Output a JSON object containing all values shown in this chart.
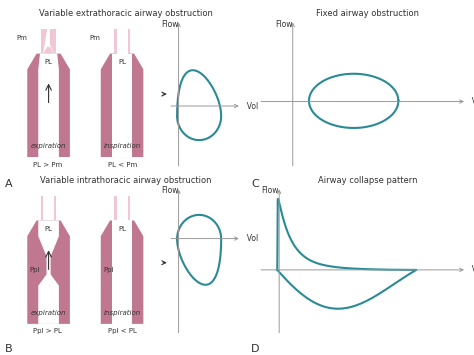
{
  "bg_color": "#ffffff",
  "curve_color": "#2a8a96",
  "curve_lw": 1.5,
  "axis_color": "#999999",
  "pink_dark": "#c07890",
  "pink_mid": "#d090a0",
  "pink_light": "#f0c8d4",
  "text_color": "#333333",
  "label_A": "A",
  "label_B": "B",
  "label_C": "C",
  "label_D": "D",
  "title_A": "Variable extrathoracic airway obstruction",
  "title_B": "Variable intrathoracic airway obstruction",
  "title_C": "Fixed airway obstruction",
  "title_D": "Airway collapse pattern",
  "flow_label": "Flow",
  "volume_label": "Volume",
  "title_fontsize": 6.0,
  "label_fontsize": 8.0,
  "small_fontsize": 5.0,
  "axis_fontsize": 5.5
}
